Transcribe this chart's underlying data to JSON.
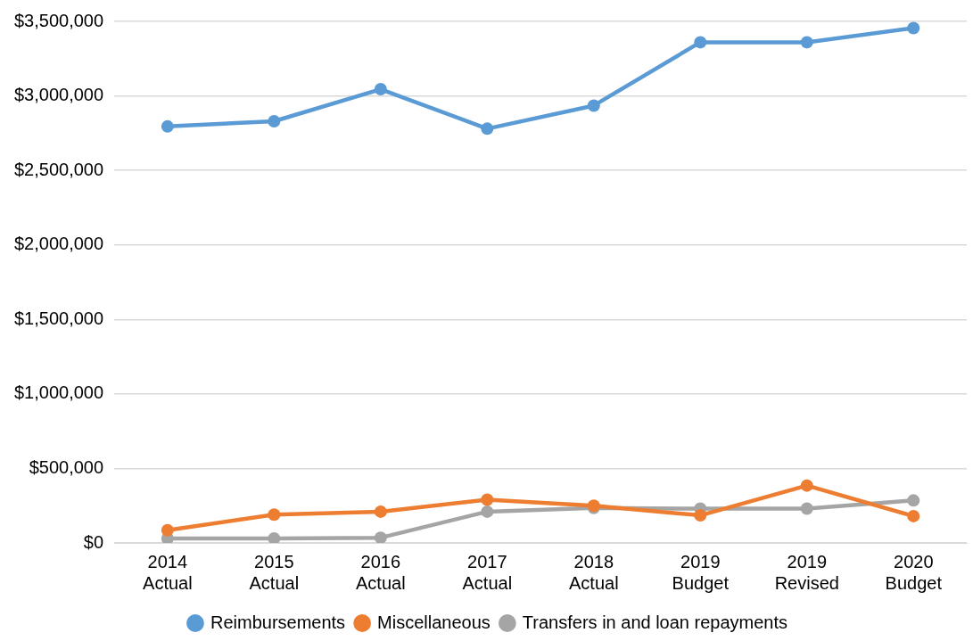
{
  "chart_data": {
    "type": "line",
    "categories": [
      "2014\nActual",
      "2015\nActual",
      "2016\nActual",
      "2017\nActual",
      "2018\nActual",
      "2019\nBudget",
      "2019\nRevised",
      "2020\nBudget"
    ],
    "series": [
      {
        "name": "Reimbursements",
        "color": "#5b9bd5",
        "values": [
          2795000,
          2830000,
          3045000,
          2780000,
          2935000,
          3360000,
          3360000,
          3455000
        ]
      },
      {
        "name": "Miscellaneous",
        "color": "#ed7d31",
        "values": [
          85000,
          190000,
          210000,
          290000,
          250000,
          185000,
          385000,
          180000
        ]
      },
      {
        "name": "Transfers in and loan repayments",
        "color": "#a5a5a5",
        "values": [
          30000,
          30000,
          35000,
          210000,
          235000,
          230000,
          230000,
          285000
        ]
      }
    ],
    "ylim": [
      0,
      3500000
    ],
    "yticks": [
      {
        "value": 0,
        "label": "$0"
      },
      {
        "value": 500000,
        "label": "$500,000"
      },
      {
        "value": 1000000,
        "label": "$1,000,000"
      },
      {
        "value": 1500000,
        "label": "$1,500,000"
      },
      {
        "value": 2000000,
        "label": "$2,000,000"
      },
      {
        "value": 2500000,
        "label": "$2,500,000"
      },
      {
        "value": 3000000,
        "label": "$3,000,000"
      },
      {
        "value": 3500000,
        "label": "$3,500,000"
      }
    ],
    "grid": "y",
    "legend": "bottom",
    "marker": "circle",
    "line_style": "solid"
  }
}
